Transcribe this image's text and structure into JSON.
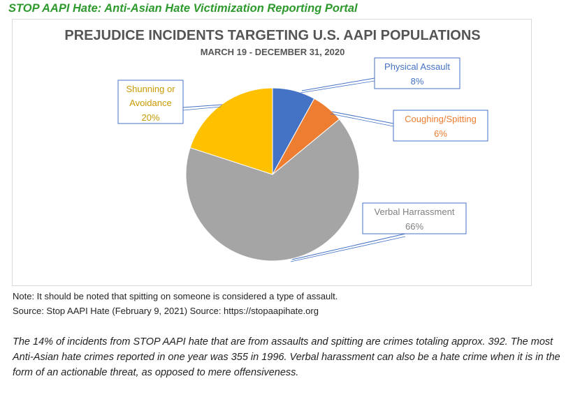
{
  "header": "STOP AAPI Hate: Anti-Asian Hate Victimization Reporting Portal",
  "chart_data": {
    "type": "pie",
    "title": "PREJUDICE INCIDENTS TARGETING U.S. AAPI POPULATIONS",
    "subtitle": "MARCH 19 - DECEMBER 31, 2020",
    "slices": [
      {
        "label": "Physical Assault",
        "value": 8,
        "value_label": "8%",
        "color": "#4472c4"
      },
      {
        "label": "Coughing/Spitting",
        "value": 6,
        "value_label": "6%",
        "color": "#ed7d31"
      },
      {
        "label": "Verbal Harrassment",
        "value": 66,
        "value_label": "66%",
        "color": "#a5a5a5"
      },
      {
        "label": "Shunning or Avoidance",
        "value": 20,
        "value_label": "20%",
        "color": "#ffc000"
      }
    ]
  },
  "notes": {
    "note": "Note:  It should be noted that spitting on someone is considered a type of assault.",
    "source": "Source: Stop AAPI Hate (February 9, 2021) Source:  https://stopaapihate.org"
  },
  "paragraph": "The 14% of incidents from STOP AAPI hate that are from assaults and spitting are crimes totaling approx. 392. The most Anti-Asian hate crimes reported in one year was 355 in 1996. Verbal harassment can also be a hate crime when it is in the form of an actionable threat, as opposed to mere offensiveness."
}
